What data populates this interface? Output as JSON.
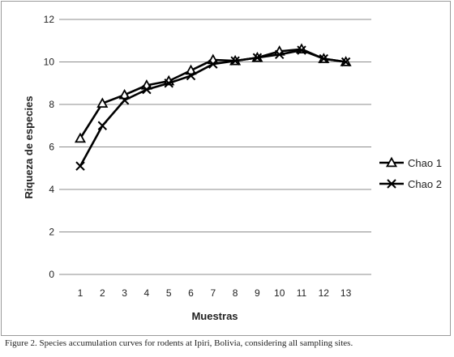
{
  "chart_data": {
    "type": "line",
    "xlabel": "Muestras",
    "ylabel": "Riqueza de especies",
    "x": [
      1,
      2,
      3,
      4,
      5,
      6,
      7,
      8,
      9,
      10,
      11,
      12,
      13
    ],
    "xlim": [
      1,
      13
    ],
    "ylim": [
      0,
      12
    ],
    "yticks": [
      0,
      2,
      4,
      6,
      8,
      10,
      12
    ],
    "grid": true,
    "legend_position": "right",
    "series": [
      {
        "name": "Chao 1",
        "marker": "triangle",
        "color": "#000000",
        "values": [
          6.4,
          8.05,
          8.45,
          8.9,
          9.1,
          9.6,
          10.1,
          10.05,
          10.2,
          10.5,
          10.6,
          10.15,
          10.0
        ]
      },
      {
        "name": "Chao 2",
        "marker": "x",
        "color": "#000000",
        "values": [
          5.1,
          7.0,
          8.2,
          8.7,
          9.0,
          9.35,
          9.9,
          10.05,
          10.2,
          10.35,
          10.55,
          10.15,
          10.0
        ]
      }
    ]
  },
  "caption": "Figure 2. Species accumulation curves for rodents at Ipiri, Bolivia, considering all sampling sites."
}
